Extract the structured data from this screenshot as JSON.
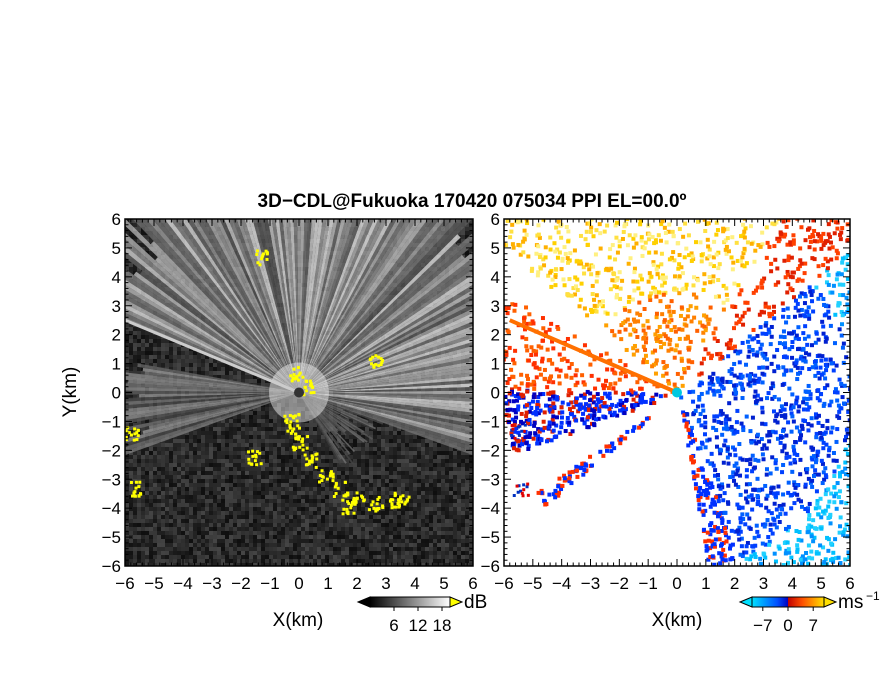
{
  "chart_data": {
    "title": "3D−CDL@Fukuoka 170420 075034 PPI EL=00.0º",
    "panels": [
      {
        "type": "heatmap",
        "name": "reflectivity",
        "xlabel": "X(km)",
        "ylabel": "Y(km)",
        "xlim": [
          -6,
          6
        ],
        "ylim": [
          -6,
          6
        ],
        "x_ticks": [
          -6,
          -5,
          -4,
          -3,
          -2,
          -1,
          0,
          1,
          2,
          3,
          4,
          5,
          6
        ],
        "y_ticks": [
          -6,
          -5,
          -4,
          -3,
          -2,
          -1,
          0,
          1,
          2,
          3,
          4,
          5,
          6
        ],
        "x_tick_labels": [
          "−6",
          "−5",
          "−4",
          "−3",
          "−2",
          "−1",
          "0",
          "1",
          "2",
          "3",
          "4",
          "5",
          "6"
        ],
        "y_tick_labels": [
          "−6",
          "−5",
          "−4",
          "−3",
          "−2",
          "−1",
          "0",
          "1",
          "2",
          "3",
          "4",
          "5",
          "6"
        ],
        "colorbar": {
          "unit": "dB",
          "ticks": [
            6,
            12,
            18
          ],
          "tick_labels": [
            "6",
            "12",
            "18"
          ],
          "range": [
            0,
            20
          ],
          "colors": [
            "#000000",
            "#ffffff"
          ],
          "over_color": "#ffff00"
        }
      },
      {
        "type": "heatmap",
        "name": "doppler velocity",
        "xlabel": "X(km)",
        "xlim": [
          -6,
          6
        ],
        "ylim": [
          -6,
          6
        ],
        "x_ticks": [
          -6,
          -5,
          -4,
          -3,
          -2,
          -1,
          0,
          1,
          2,
          3,
          4,
          5,
          6
        ],
        "y_ticks": [
          -6,
          -5,
          -4,
          -3,
          -2,
          -1,
          0,
          1,
          2,
          3,
          4,
          5,
          6
        ],
        "x_tick_labels": [
          "−6",
          "−5",
          "−4",
          "−3",
          "−2",
          "−1",
          "0",
          "1",
          "2",
          "3",
          "4",
          "5",
          "6"
        ],
        "y_tick_labels": [
          "−6",
          "−5",
          "−4",
          "−3",
          "−2",
          "−1",
          "0",
          "1",
          "2",
          "3",
          "4",
          "5",
          "6"
        ],
        "colorbar": {
          "unit": "ms⁻¹",
          "unit_base": "ms",
          "unit_exp": "−1",
          "ticks": [
            -7,
            0,
            7
          ],
          "tick_labels": [
            "−7",
            "0",
            "7"
          ],
          "range": [
            -10,
            10
          ],
          "colors": [
            "#00e0ff",
            "#0050ff",
            "#0000c0",
            "#c00000",
            "#ff5000",
            "#ffe000"
          ]
        }
      }
    ]
  }
}
